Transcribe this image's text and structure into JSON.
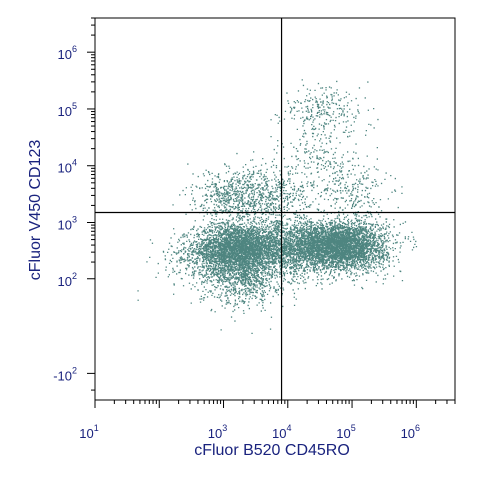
{
  "chart_data": {
    "type": "scatter",
    "xlabel": "cFluor B520 CD45RO",
    "ylabel": "cFluor V450 CD123",
    "x_scale": "log",
    "y_scale": "biexponential",
    "x_ticks": [
      {
        "base": "10",
        "exp": "1",
        "value": 10
      },
      {
        "base": "10",
        "exp": "3",
        "value": 1000
      },
      {
        "base": "10",
        "exp": "4",
        "value": 10000
      },
      {
        "base": "10",
        "exp": "5",
        "value": 100000
      },
      {
        "base": "10",
        "exp": "6",
        "value": 1000000
      }
    ],
    "y_ticks": [
      {
        "base": "10",
        "exp": "6",
        "value": 1000000
      },
      {
        "base": "10",
        "exp": "5",
        "value": 100000
      },
      {
        "base": "10",
        "exp": "4",
        "value": 10000
      },
      {
        "base": "10",
        "exp": "3",
        "value": 1000
      },
      {
        "base": "10",
        "exp": "2",
        "value": 100
      },
      {
        "base": "-10",
        "exp": "2",
        "value": -100
      }
    ],
    "xlim": [
      10,
      4000000
    ],
    "ylim": [
      -300,
      4000000
    ],
    "quadrant_gate": {
      "x": 8000,
      "y": 1500
    },
    "point_color": "#4e8580",
    "populations": [
      {
        "x": 1500,
        "y": 350,
        "count": 3200
      },
      {
        "x": 60000,
        "y": 400,
        "count": 4200
      },
      {
        "x": 8000,
        "y": 350,
        "count": 1300
      },
      {
        "x": 1600,
        "y": 3000,
        "count": 650
      },
      {
        "x": 2000,
        "y": 100,
        "count": 750
      },
      {
        "x": 35000,
        "y": 90000,
        "count": 260
      },
      {
        "x": 30000,
        "y": 15000,
        "count": 160
      },
      {
        "x": 90000,
        "y": 4000,
        "count": 240
      },
      {
        "x": 7000,
        "y": 3000,
        "count": 320
      },
      {
        "x": 300,
        "y": 200,
        "count": 160
      }
    ]
  }
}
